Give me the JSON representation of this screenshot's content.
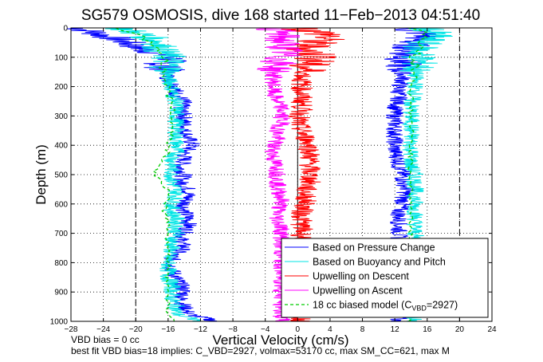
{
  "chart_data": {
    "type": "line",
    "title": "SG579 OSMOSIS, dive 168 started 11−Feb−2013 04:51:40",
    "xlabel": "Vertical Velocity (cm/s)",
    "ylabel": "Depth (m)",
    "xlim": [
      -28,
      24
    ],
    "ylim": [
      1000,
      0
    ],
    "x_ticks": [
      -28,
      -24,
      -20,
      -16,
      -12,
      -8,
      -4,
      0,
      4,
      8,
      12,
      16,
      20,
      24
    ],
    "y_ticks": [
      0,
      100,
      200,
      300,
      400,
      500,
      600,
      700,
      800,
      900,
      1000
    ],
    "grid": true,
    "legend_position": "bottom-right",
    "reference_lines": [
      -20,
      20
    ],
    "footer_lines": [
      "VBD bias = 0 cc",
      "best fit VBD bias=18 implies: C_VBD=2927, volmax=53170 cc, max SM_CC=621, max M"
    ],
    "legend": {
      "model_prefix": "18 cc biased model (C",
      "model_sub": "VBD",
      "model_suffix": "=2927)"
    },
    "depth": [
      0,
      25,
      50,
      75,
      100,
      125,
      150,
      175,
      200,
      225,
      250,
      275,
      300,
      325,
      350,
      375,
      400,
      425,
      450,
      475,
      500,
      525,
      550,
      575,
      600,
      625,
      650,
      675,
      700,
      725,
      750,
      775,
      800,
      825,
      850,
      875,
      900,
      925,
      950,
      975,
      1000
    ],
    "series": [
      {
        "name": "Based on Pressure Change",
        "color": "#0000ff",
        "branches": [
          [
            -27,
            -24,
            -21,
            -19,
            -15,
            -17,
            -16,
            -16,
            -15,
            -15,
            -14,
            -14.5,
            -14,
            -14,
            -14,
            -13.5,
            -13,
            -14,
            -14,
            -14.5,
            -14,
            -14.5,
            -13.5,
            -13.5,
            -14,
            -14,
            -13.5,
            -13.5,
            -14,
            -14.5,
            -14,
            -15.5,
            -15.5,
            -15.5,
            -15,
            -14.5,
            -14,
            -14.5,
            -14,
            -13.5,
            -10
          ],
          [
            13,
            16,
            14,
            14,
            13,
            13,
            13,
            13,
            12.5,
            12.5,
            12.5,
            12,
            12,
            12,
            12,
            12,
            12,
            12,
            12.5,
            12.5,
            13,
            13,
            13.5,
            13,
            13,
            12.5,
            12.5,
            12.5,
            12.5,
            12.5,
            12.5,
            12.5,
            12.5,
            12.5,
            12.5,
            12.5,
            12.5,
            12.5,
            12.5,
            12.5,
            12.5
          ]
        ]
      },
      {
        "name": "Based on Buoyancy and Pitch",
        "color": "#00e5e5",
        "branches": [
          [
            -22,
            -19,
            -17,
            -17,
            -16,
            -16,
            -16,
            -16,
            -15.5,
            -15.5,
            -15,
            -15,
            -15,
            -15,
            -15,
            -15,
            -15,
            -15,
            -15.5,
            -15.5,
            -15.5,
            -15.5,
            -15,
            -15,
            -15.5,
            -15.5,
            -15,
            -15,
            -15,
            -15.5,
            -15.5,
            -16,
            -16,
            -16,
            -16,
            -15.5,
            -15.5,
            -15.5,
            -15,
            -15,
            -12
          ],
          [
            16,
            17,
            15.5,
            15,
            15,
            15,
            14.5,
            14.5,
            14.5,
            14.5,
            14,
            14,
            14,
            14,
            14,
            14,
            14,
            14,
            14,
            14,
            14.5,
            14.5,
            14.5,
            14.5,
            14.5,
            14.5,
            14.5,
            14.5,
            14.5,
            14.5,
            14.5,
            14.5,
            14.5,
            14.5,
            14.5,
            14.5,
            14.5,
            14.5,
            14.5,
            14.5,
            14.5
          ]
        ]
      },
      {
        "name": "Upwelling on Descent",
        "color": "#ff0000",
        "branches": [
          [
            0,
            4,
            2,
            1,
            3,
            1,
            1,
            0.5,
            0.5,
            0.5,
            0.5,
            0.5,
            0.3,
            0,
            0.5,
            1,
            1.5,
            1.5,
            1.5,
            1.5,
            1.5,
            1.5,
            1,
            1,
            1,
            0.5,
            0.5,
            0.5,
            0.5,
            0.5,
            0.5,
            0.5,
            0.5,
            0.5,
            0.5,
            0.5,
            0.5,
            0.5,
            0.5,
            0.5,
            0.5
          ]
        ]
      },
      {
        "name": "Upwelling on Ascent",
        "color": "#ff00ff",
        "branches": [
          [
            -3,
            -2,
            -2,
            -1.5,
            -2,
            -2.5,
            -3,
            -3,
            -3,
            -3,
            -2.5,
            -2,
            -2,
            -2,
            -2.5,
            -2.5,
            -3,
            -3,
            -3,
            -2.5,
            -2.5,
            -2.5,
            -2.5,
            -2,
            -2,
            -2.5,
            -2.5,
            -2,
            -2,
            -2,
            -2,
            -2,
            -2,
            -2,
            -2,
            -2,
            -2,
            -2,
            -2,
            -2,
            -2
          ]
        ]
      },
      {
        "name": "18 cc biased model",
        "color": "#00cc00",
        "branches": [
          [
            -22,
            -20,
            -18,
            -17,
            -16.5,
            -16.5,
            -16.5,
            -16.5,
            -16,
            -16,
            -15.5,
            -15.5,
            -15.5,
            -15.5,
            -15.5,
            -15.5,
            -16,
            -16,
            -16.5,
            -17.5,
            -17.5,
            -17,
            -16,
            -16,
            -16.5,
            -16.5,
            -16,
            -16,
            -16,
            -16,
            -16,
            -16,
            -16,
            -16,
            -16,
            -16,
            -16,
            -16,
            -16,
            -16,
            -15
          ],
          [
            14,
            16,
            15,
            15,
            14.5,
            14.5,
            14.5,
            14.5,
            14,
            14,
            14,
            14,
            14,
            14,
            14,
            14,
            14,
            14,
            14,
            14,
            14,
            14,
            14,
            14,
            14,
            14,
            14,
            14,
            14,
            14,
            14,
            14,
            14,
            14,
            14,
            14,
            14,
            14,
            14,
            14,
            14
          ]
        ]
      }
    ]
  }
}
